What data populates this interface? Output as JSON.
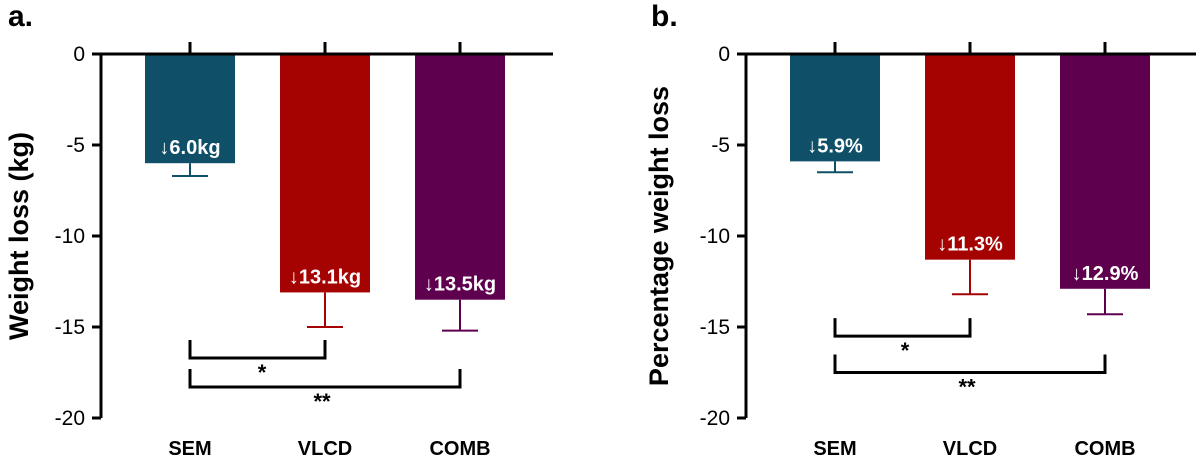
{
  "chart_data": [
    {
      "type": "bar",
      "panel_label": "a.",
      "title": "",
      "xlabel": "",
      "ylabel": "Weight loss (kg)",
      "ylim": [
        -20,
        0
      ],
      "yticks": [
        0,
        -5,
        -10,
        -15,
        -20
      ],
      "ytick_labels": [
        "0",
        "-5",
        "-10",
        "-15",
        "-20"
      ],
      "categories": [
        "SEM",
        "VLCD",
        "COMB"
      ],
      "values": [
        -6.0,
        -13.1,
        -13.5
      ],
      "error_low": [
        -6.7,
        -15.0,
        -15.2
      ],
      "bar_colors": [
        "#0f5068",
        "#a50202",
        "#5f004f"
      ],
      "data_labels": [
        "↓6.0kg",
        "↓13.1kg",
        "↓13.5kg"
      ],
      "significance": [
        {
          "from": 0,
          "to": 1,
          "y": -16.7,
          "label": "*"
        },
        {
          "from": 0,
          "to": 2,
          "y": -18.3,
          "label": "**"
        }
      ]
    },
    {
      "type": "bar",
      "panel_label": "b.",
      "title": "",
      "xlabel": "",
      "ylabel": "Percentage weight loss",
      "ylim": [
        -20,
        0
      ],
      "yticks": [
        0,
        -5,
        -10,
        -15,
        -20
      ],
      "ytick_labels": [
        "0",
        "-5",
        "-10",
        "-15",
        "-20"
      ],
      "categories": [
        "SEM",
        "VLCD",
        "COMB"
      ],
      "values": [
        -5.9,
        -11.3,
        -12.9
      ],
      "error_low": [
        -6.5,
        -13.2,
        -14.3
      ],
      "bar_colors": [
        "#0f5068",
        "#a50202",
        "#5f004f"
      ],
      "data_labels": [
        "↓5.9%",
        "↓11.3%",
        "↓12.9%"
      ],
      "significance": [
        {
          "from": 0,
          "to": 1,
          "y": -15.5,
          "label": "*"
        },
        {
          "from": 0,
          "to": 2,
          "y": -17.5,
          "label": "**"
        }
      ]
    }
  ]
}
